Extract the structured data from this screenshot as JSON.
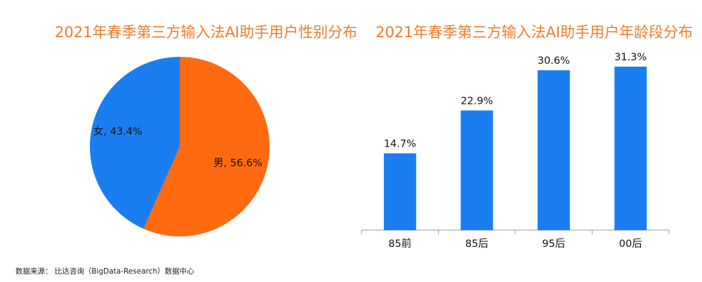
{
  "chart_data": [
    {
      "type": "pie",
      "title": "2021年春季第三方输入法AI助手用户性别分布",
      "slices": [
        {
          "label": "男",
          "value": 56.6,
          "display": "男, 56.6%",
          "color": "#ff6a10"
        },
        {
          "label": "女",
          "value": 43.4,
          "display": "女, 43.4%",
          "color": "#1a7ef0"
        }
      ]
    },
    {
      "type": "bar",
      "title": "2021年春季第三方输入法AI助手用户年龄段分布",
      "categories": [
        "85前",
        "85后",
        "95后",
        "00后"
      ],
      "values": [
        14.7,
        22.9,
        30.6,
        31.3
      ],
      "value_labels": [
        "14.7%",
        "22.9%",
        "30.6%",
        "31.3%"
      ],
      "color": "#1a7ef0",
      "grid": false,
      "legend": "none"
    }
  ],
  "colors": {
    "title": "#ef7d2b",
    "male": "#ff6a10",
    "female": "#1a7ef0",
    "bar": "#1a7ef0",
    "axis": "#9a9a9a",
    "text": "#111111"
  },
  "source": "数据来源：  比达咨询（BigData-Research）数据中心"
}
